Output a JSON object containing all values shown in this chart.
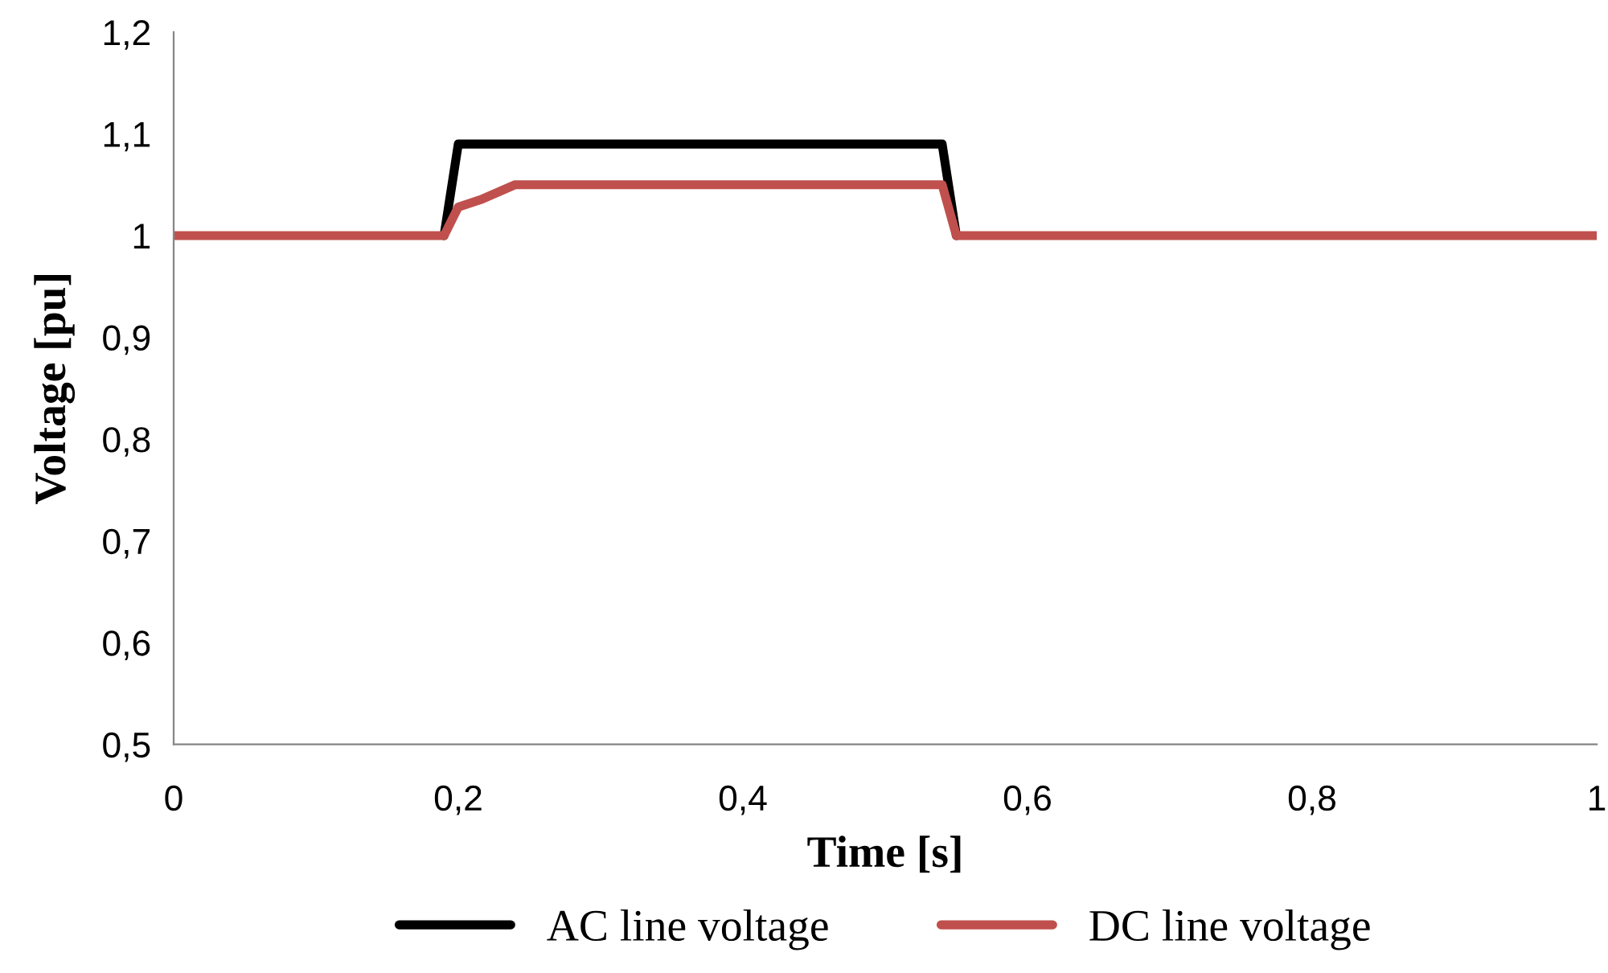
{
  "chart_data": {
    "type": "line",
    "xlabel": "Time [s]",
    "ylabel": "Voltage [pu]",
    "xlim": [
      0,
      1
    ],
    "xticks": [
      {
        "value": 0,
        "label": "0"
      },
      {
        "value": 0.2,
        "label": "0,2"
      },
      {
        "value": 0.4,
        "label": "0,4"
      },
      {
        "value": 0.6,
        "label": "0,6"
      },
      {
        "value": 0.8,
        "label": "0,8"
      },
      {
        "value": 1,
        "label": "1"
      }
    ],
    "ylim": [
      0.5,
      1.2
    ],
    "yticks": [
      {
        "value": 0.5,
        "label": "0,5"
      },
      {
        "value": 0.6,
        "label": "0,6"
      },
      {
        "value": 0.7,
        "label": "0,7"
      },
      {
        "value": 0.8,
        "label": "0,8"
      },
      {
        "value": 0.9,
        "label": "0,9"
      },
      {
        "value": 1,
        "label": "1"
      },
      {
        "value": 1.1,
        "label": "1,1"
      },
      {
        "value": 1.2,
        "label": "1,2"
      }
    ],
    "grid": false,
    "legend": "bottom",
    "marker": "none",
    "line_style": "solid",
    "series": [
      {
        "name": "AC line voltage",
        "color": "#000000",
        "x": [
          0.19,
          0.2,
          0.54,
          0.55
        ],
        "values": [
          1,
          1.09,
          1.09,
          1
        ]
      },
      {
        "name": "DC line voltage",
        "color": "#c0504d",
        "x": [
          0,
          0.19,
          0.2,
          0.217,
          0.23,
          0.24,
          0.54,
          0.55,
          1
        ],
        "values": [
          1,
          1,
          1.028,
          1.036,
          1.044,
          1.05,
          1.05,
          1,
          1
        ]
      }
    ]
  }
}
